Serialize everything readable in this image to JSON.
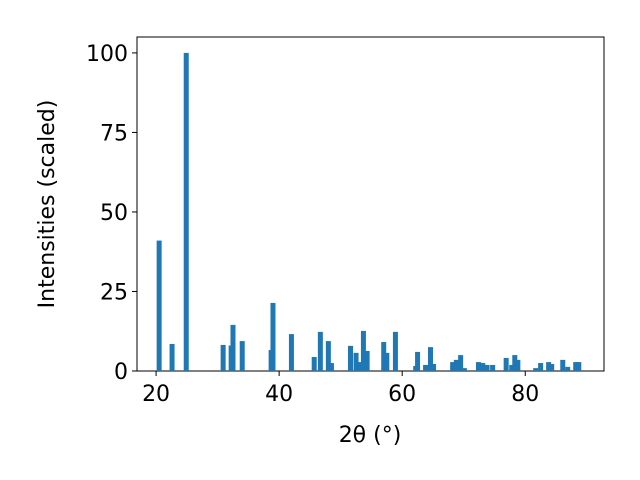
{
  "chart_data": {
    "type": "bar",
    "xlabel": "2θ (°)",
    "ylabel": "Intensities (scaled)",
    "x": [
      20.5,
      22.6,
      24.9,
      30.9,
      32.2,
      32.5,
      34.0,
      38.7,
      39.0,
      42.0,
      45.7,
      46.7,
      48.0,
      48.5,
      51.6,
      52.5,
      53.3,
      53.7,
      54.3,
      57.0,
      57.5,
      58.9,
      62.2,
      62.5,
      63.8,
      64.6,
      65.1,
      68.2,
      68.8,
      69.5,
      70.1,
      72.4,
      73.1,
      73.8,
      74.7,
      76.9,
      77.8,
      78.3,
      78.8,
      81.7,
      82.5,
      83.8,
      84.3,
      86.1,
      86.9,
      88.2,
      88.7
    ],
    "values": [
      41,
      8.5,
      100,
      8.2,
      8,
      14.5,
      9.4,
      6.6,
      21.4,
      11.6,
      4.4,
      12.3,
      9.4,
      2.5,
      7.9,
      5.7,
      2.8,
      12.6,
      6.3,
      9.1,
      5.7,
      12.3,
      1.6,
      6.0,
      1.9,
      7.5,
      2.2,
      2.8,
      3.5,
      5.0,
      0.9,
      2.8,
      2.5,
      1.9,
      1.9,
      4.1,
      1.9,
      5.0,
      3.5,
      0.9,
      2.5,
      2.8,
      2.2,
      3.5,
      1.3,
      2.8,
      2.8
    ],
    "color": "#1f77b4",
    "xlim": [
      16.9,
      92.8
    ],
    "xticks": [
      20,
      40,
      60,
      80
    ],
    "ylim": [
      0,
      105
    ],
    "yticks": [
      0,
      25,
      50,
      75,
      100
    ]
  }
}
